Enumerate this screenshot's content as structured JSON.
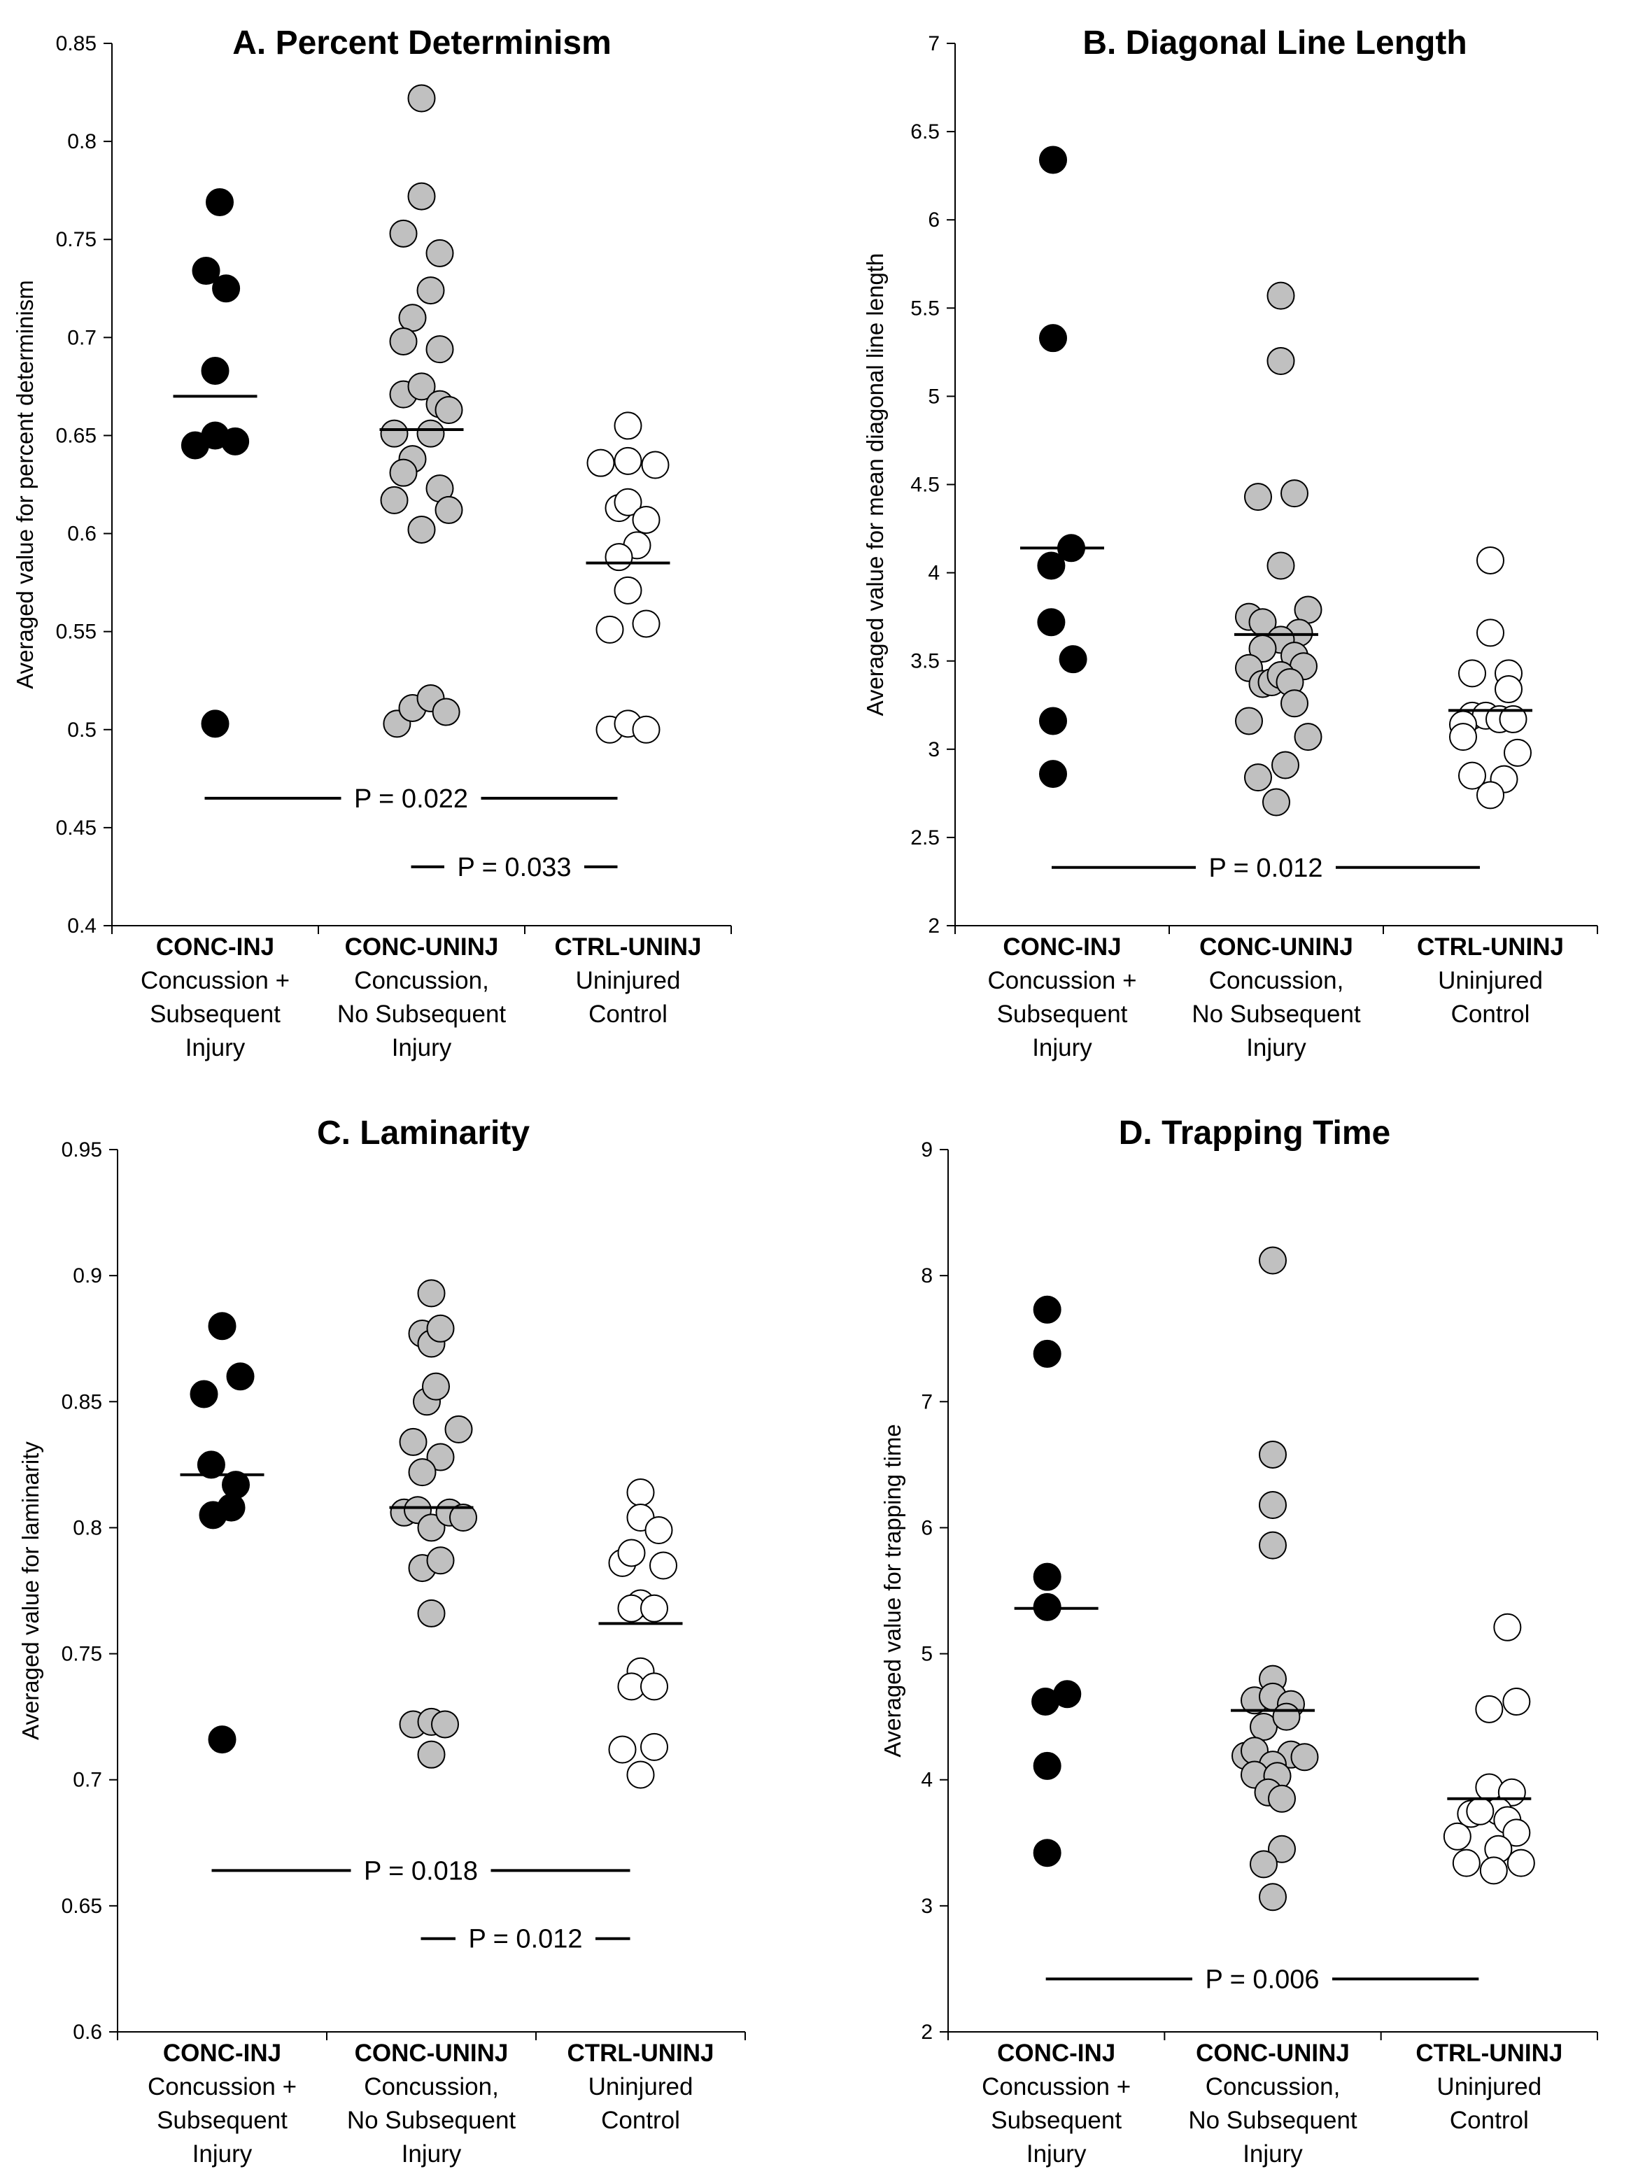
{
  "colors": {
    "CONC-INJ": "#000000",
    "CONC-UNINJ": "#c0c0c0",
    "CTRL-UNINJ": "#ffffff",
    "outline": "#000000"
  },
  "chart_data": [
    {
      "type": "scatter",
      "title": "A. Percent Determinism",
      "ylabel": "Averaged value for percent determinism",
      "ylim": [
        0.4,
        0.85
      ],
      "ytick_step": 0.05,
      "ytick_labels": [
        "0.4",
        "0.45",
        "0.5",
        "0.55",
        "0.6",
        "0.65",
        "0.7",
        "0.75",
        "0.8",
        "0.85"
      ],
      "categories": [
        {
          "code": "CONC-INJ",
          "lines": [
            "Concussion +",
            "Subsequent",
            "Injury"
          ]
        },
        {
          "code": "CONC-UNINJ",
          "lines": [
            "Concussion,",
            "No Subsequent",
            "Injury"
          ]
        },
        {
          "code": "CTRL-UNINJ",
          "lines": [
            "Uninjured",
            "Control"
          ]
        }
      ],
      "series": [
        {
          "name": "CONC-INJ",
          "mean": 0.67,
          "points": [
            [
              0.05,
              0.769
            ],
            [
              -0.1,
              0.734
            ],
            [
              0.12,
              0.725
            ],
            [
              0.0,
              0.683
            ],
            [
              -0.22,
              0.645
            ],
            [
              0.0,
              0.65
            ],
            [
              0.22,
              0.647
            ],
            [
              0.0,
              0.503
            ]
          ]
        },
        {
          "name": "CONC-UNINJ",
          "mean": 0.653,
          "points": [
            [
              0.0,
              0.822
            ],
            [
              0.0,
              0.772
            ],
            [
              -0.2,
              0.753
            ],
            [
              0.2,
              0.743
            ],
            [
              0.1,
              0.724
            ],
            [
              -0.1,
              0.71
            ],
            [
              -0.2,
              0.698
            ],
            [
              0.2,
              0.694
            ],
            [
              -0.2,
              0.671
            ],
            [
              0.0,
              0.675
            ],
            [
              0.2,
              0.666
            ],
            [
              0.3,
              0.663
            ],
            [
              -0.3,
              0.651
            ],
            [
              0.1,
              0.651
            ],
            [
              -0.1,
              0.638
            ],
            [
              -0.2,
              0.631
            ],
            [
              0.2,
              0.623
            ],
            [
              -0.3,
              0.617
            ],
            [
              0.3,
              0.612
            ],
            [
              0.0,
              0.602
            ],
            [
              -0.27,
              0.503
            ],
            [
              -0.1,
              0.511
            ],
            [
              0.1,
              0.516
            ],
            [
              0.27,
              0.509
            ]
          ]
        },
        {
          "name": "CTRL-UNINJ",
          "mean": 0.585,
          "points": [
            [
              0.0,
              0.655
            ],
            [
              -0.3,
              0.636
            ],
            [
              0.0,
              0.637
            ],
            [
              0.3,
              0.635
            ],
            [
              -0.1,
              0.613
            ],
            [
              0.0,
              0.616
            ],
            [
              0.2,
              0.607
            ],
            [
              0.1,
              0.594
            ],
            [
              -0.1,
              0.588
            ],
            [
              0.0,
              0.571
            ],
            [
              -0.2,
              0.551
            ],
            [
              0.2,
              0.554
            ],
            [
              -0.2,
              0.5
            ],
            [
              0.0,
              0.503
            ],
            [
              0.2,
              0.5
            ]
          ]
        }
      ],
      "comparisons": [
        {
          "label": "P = 0.022",
          "y": 0.465,
          "from": "CONC-INJ",
          "to": "CTRL-UNINJ"
        },
        {
          "label": "P = 0.033",
          "y": 0.43,
          "from": "CONC-UNINJ",
          "to": "CTRL-UNINJ"
        }
      ]
    },
    {
      "type": "scatter",
      "title": "B. Diagonal Line Length",
      "ylabel": "Averaged value for mean diagonal line length",
      "ylim": [
        2,
        7
      ],
      "ytick_step": 0.5,
      "ytick_labels": [
        "2",
        "2.5",
        "3",
        "3.5",
        "4",
        "4.5",
        "5",
        "5.5",
        "6",
        "6.5",
        "7"
      ],
      "categories": [
        {
          "code": "CONC-INJ",
          "lines": [
            "Concussion +",
            "Subsequent",
            "Injury"
          ]
        },
        {
          "code": "CONC-UNINJ",
          "lines": [
            "Concussion,",
            "No Subsequent",
            "Injury"
          ]
        },
        {
          "code": "CTRL-UNINJ",
          "lines": [
            "Uninjured",
            "Control"
          ]
        }
      ],
      "series": [
        {
          "name": "CONC-INJ",
          "mean": 4.14,
          "points": [
            [
              -0.1,
              6.34
            ],
            [
              -0.1,
              5.33
            ],
            [
              0.1,
              4.14
            ],
            [
              -0.12,
              4.04
            ],
            [
              -0.12,
              3.72
            ],
            [
              0.12,
              3.51
            ],
            [
              -0.1,
              3.16
            ],
            [
              -0.1,
              2.86
            ]
          ]
        },
        {
          "name": "CONC-UNINJ",
          "mean": 3.65,
          "points": [
            [
              0.05,
              5.57
            ],
            [
              0.05,
              5.2
            ],
            [
              -0.2,
              4.43
            ],
            [
              0.2,
              4.45
            ],
            [
              0.05,
              4.04
            ],
            [
              -0.3,
              3.75
            ],
            [
              -0.15,
              3.72
            ],
            [
              0.35,
              3.79
            ],
            [
              0.25,
              3.66
            ],
            [
              0.05,
              3.62
            ],
            [
              -0.15,
              3.57
            ],
            [
              -0.3,
              3.46
            ],
            [
              0.2,
              3.53
            ],
            [
              0.3,
              3.47
            ],
            [
              -0.15,
              3.37
            ],
            [
              -0.05,
              3.38
            ],
            [
              0.05,
              3.42
            ],
            [
              0.15,
              3.38
            ],
            [
              0.2,
              3.26
            ],
            [
              -0.3,
              3.16
            ],
            [
              0.35,
              3.07
            ],
            [
              0.1,
              2.91
            ],
            [
              -0.2,
              2.84
            ],
            [
              0.0,
              2.7
            ]
          ]
        },
        {
          "name": "CTRL-UNINJ",
          "mean": 3.22,
          "points": [
            [
              0.0,
              4.07
            ],
            [
              0.0,
              3.66
            ],
            [
              -0.2,
              3.43
            ],
            [
              0.2,
              3.43
            ],
            [
              0.2,
              3.34
            ],
            [
              -0.2,
              3.19
            ],
            [
              -0.05,
              3.19
            ],
            [
              0.1,
              3.17
            ],
            [
              0.25,
              3.17
            ],
            [
              -0.3,
              3.14
            ],
            [
              -0.3,
              3.07
            ],
            [
              0.3,
              2.98
            ],
            [
              -0.2,
              2.85
            ],
            [
              0.15,
              2.83
            ],
            [
              0.0,
              2.74
            ]
          ]
        }
      ],
      "comparisons": [
        {
          "label": "P = 0.012",
          "y": 2.33,
          "from": "CONC-INJ",
          "to": "CTRL-UNINJ"
        }
      ]
    },
    {
      "type": "scatter",
      "title": "C. Laminarity",
      "ylabel": "Averaged value for laminarity",
      "ylim": [
        0.6,
        0.95
      ],
      "ytick_step": 0.05,
      "ytick_labels": [
        "0.6",
        "0.65",
        "0.7",
        "0.75",
        "0.8",
        "0.85",
        "0.9",
        "0.95"
      ],
      "categories": [
        {
          "code": "CONC-INJ",
          "lines": [
            "Concussion +",
            "Subsequent",
            "Injury"
          ]
        },
        {
          "code": "CONC-UNINJ",
          "lines": [
            "Concussion,",
            "No Subsequent",
            "Injury"
          ]
        },
        {
          "code": "CTRL-UNINJ",
          "lines": [
            "Uninjured",
            "Control"
          ]
        }
      ],
      "series": [
        {
          "name": "CONC-INJ",
          "mean": 0.821,
          "points": [
            [
              0.0,
              0.88
            ],
            [
              -0.2,
              0.853
            ],
            [
              0.2,
              0.86
            ],
            [
              -0.12,
              0.825
            ],
            [
              0.15,
              0.817
            ],
            [
              -0.1,
              0.805
            ],
            [
              0.1,
              0.808
            ],
            [
              0.0,
              0.716
            ]
          ]
        },
        {
          "name": "CONC-UNINJ",
          "mean": 0.808,
          "points": [
            [
              0.0,
              0.893
            ],
            [
              -0.1,
              0.877
            ],
            [
              0.0,
              0.873
            ],
            [
              0.1,
              0.879
            ],
            [
              -0.05,
              0.85
            ],
            [
              0.05,
              0.856
            ],
            [
              -0.2,
              0.834
            ],
            [
              0.3,
              0.839
            ],
            [
              0.1,
              0.828
            ],
            [
              -0.1,
              0.822
            ],
            [
              -0.3,
              0.806
            ],
            [
              -0.15,
              0.807
            ],
            [
              0.0,
              0.8
            ],
            [
              0.2,
              0.806
            ],
            [
              0.35,
              0.804
            ],
            [
              -0.1,
              0.784
            ],
            [
              0.1,
              0.787
            ],
            [
              0.0,
              0.766
            ],
            [
              -0.2,
              0.722
            ],
            [
              0.0,
              0.723
            ],
            [
              0.15,
              0.722
            ],
            [
              0.0,
              0.71
            ]
          ]
        },
        {
          "name": "CTRL-UNINJ",
          "mean": 0.762,
          "points": [
            [
              0.0,
              0.814
            ],
            [
              0.0,
              0.804
            ],
            [
              0.2,
              0.799
            ],
            [
              -0.2,
              0.786
            ],
            [
              -0.1,
              0.79
            ],
            [
              0.25,
              0.785
            ],
            [
              0.0,
              0.77
            ],
            [
              -0.1,
              0.768
            ],
            [
              0.15,
              0.768
            ],
            [
              0.0,
              0.743
            ],
            [
              -0.1,
              0.737
            ],
            [
              0.15,
              0.737
            ],
            [
              -0.2,
              0.712
            ],
            [
              0.15,
              0.713
            ],
            [
              0.0,
              0.702
            ]
          ]
        }
      ],
      "comparisons": [
        {
          "label": "P = 0.018",
          "y": 0.664,
          "from": "CONC-INJ",
          "to": "CTRL-UNINJ"
        },
        {
          "label": "P = 0.012",
          "y": 0.637,
          "from": "CONC-UNINJ",
          "to": "CTRL-UNINJ"
        }
      ]
    },
    {
      "type": "scatter",
      "title": "D. Trapping Time",
      "ylabel": "Averaged value for  trapping time",
      "ylim": [
        2,
        9
      ],
      "ytick_step": 1,
      "ytick_labels": [
        "2",
        "3",
        "4",
        "5",
        "6",
        "7",
        "8",
        "9"
      ],
      "categories": [
        {
          "code": "CONC-INJ",
          "lines": [
            "Concussion +",
            "Subsequent",
            "Injury"
          ]
        },
        {
          "code": "CONC-UNINJ",
          "lines": [
            "Concussion,",
            "No Subsequent",
            "Injury"
          ]
        },
        {
          "code": "CTRL-UNINJ",
          "lines": [
            "Uninjured",
            "Control"
          ]
        }
      ],
      "series": [
        {
          "name": "CONC-INJ",
          "mean": 5.36,
          "points": [
            [
              -0.1,
              7.73
            ],
            [
              -0.1,
              7.38
            ],
            [
              -0.1,
              5.61
            ],
            [
              -0.1,
              5.37
            ],
            [
              -0.12,
              4.62
            ],
            [
              0.12,
              4.68
            ],
            [
              -0.1,
              4.11
            ],
            [
              -0.1,
              3.42
            ]
          ]
        },
        {
          "name": "CONC-UNINJ",
          "mean": 4.55,
          "points": [
            [
              0.0,
              8.12
            ],
            [
              0.0,
              6.58
            ],
            [
              0.0,
              6.18
            ],
            [
              0.0,
              5.86
            ],
            [
              0.0,
              4.8
            ],
            [
              -0.2,
              4.63
            ],
            [
              0.0,
              4.66
            ],
            [
              0.2,
              4.6
            ],
            [
              -0.1,
              4.42
            ],
            [
              0.15,
              4.5
            ],
            [
              -0.3,
              4.19
            ],
            [
              -0.2,
              4.23
            ],
            [
              0.2,
              4.2
            ],
            [
              0.35,
              4.18
            ],
            [
              0.0,
              4.12
            ],
            [
              -0.2,
              4.04
            ],
            [
              0.05,
              4.03
            ],
            [
              -0.05,
              3.9
            ],
            [
              0.1,
              3.85
            ],
            [
              0.1,
              3.45
            ],
            [
              -0.1,
              3.33
            ],
            [
              0.0,
              3.07
            ]
          ]
        },
        {
          "name": "CTRL-UNINJ",
          "mean": 3.85,
          "points": [
            [
              0.2,
              5.21
            ],
            [
              0.0,
              4.56
            ],
            [
              0.3,
              4.62
            ],
            [
              0.0,
              3.94
            ],
            [
              0.25,
              3.9
            ],
            [
              -0.2,
              3.73
            ],
            [
              0.1,
              3.75
            ],
            [
              0.2,
              3.68
            ],
            [
              -0.1,
              3.75
            ],
            [
              0.3,
              3.58
            ],
            [
              -0.35,
              3.55
            ],
            [
              0.1,
              3.45
            ],
            [
              -0.25,
              3.34
            ],
            [
              0.05,
              3.28
            ],
            [
              0.35,
              3.34
            ]
          ]
        }
      ],
      "comparisons": [
        {
          "label": "P = 0.006",
          "y": 2.42,
          "from": "CONC-INJ",
          "to": "CTRL-UNINJ"
        }
      ]
    }
  ]
}
